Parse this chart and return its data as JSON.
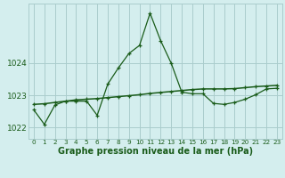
{
  "title": "Graphe pression niveau de la mer (hPa)",
  "background_color": "#d4eeee",
  "grid_color": "#aacccc",
  "line_color": "#1a5c1a",
  "xlim": [
    -0.5,
    23.5
  ],
  "ylim": [
    1021.65,
    1025.85
  ],
  "yticks": [
    1022,
    1023,
    1024
  ],
  "xticks": [
    0,
    1,
    2,
    3,
    4,
    5,
    6,
    7,
    8,
    9,
    10,
    11,
    12,
    13,
    14,
    15,
    16,
    17,
    18,
    19,
    20,
    21,
    22,
    23
  ],
  "hours": [
    0,
    1,
    2,
    3,
    4,
    5,
    6,
    7,
    8,
    9,
    10,
    11,
    12,
    13,
    14,
    15,
    16,
    17,
    18,
    19,
    20,
    21,
    22,
    23
  ],
  "line1": [
    1022.55,
    1022.1,
    1022.7,
    1022.82,
    1022.82,
    1022.82,
    1022.38,
    1023.35,
    1023.85,
    1024.3,
    1024.55,
    1025.55,
    1024.7,
    1024.0,
    1023.1,
    1023.05,
    1023.05,
    1022.75,
    1022.72,
    1022.78,
    1022.88,
    1023.02,
    1023.2,
    1023.22
  ],
  "line2": [
    1022.72,
    1022.74,
    1022.78,
    1022.82,
    1022.86,
    1022.88,
    1022.9,
    1022.93,
    1022.96,
    1022.99,
    1023.02,
    1023.06,
    1023.09,
    1023.12,
    1023.15,
    1023.18,
    1023.2,
    1023.2,
    1023.2,
    1023.21,
    1023.24,
    1023.27,
    1023.29,
    1023.31
  ],
  "xtick_fontsize": 5.2,
  "ytick_fontsize": 6.5,
  "title_fontsize": 7.0
}
